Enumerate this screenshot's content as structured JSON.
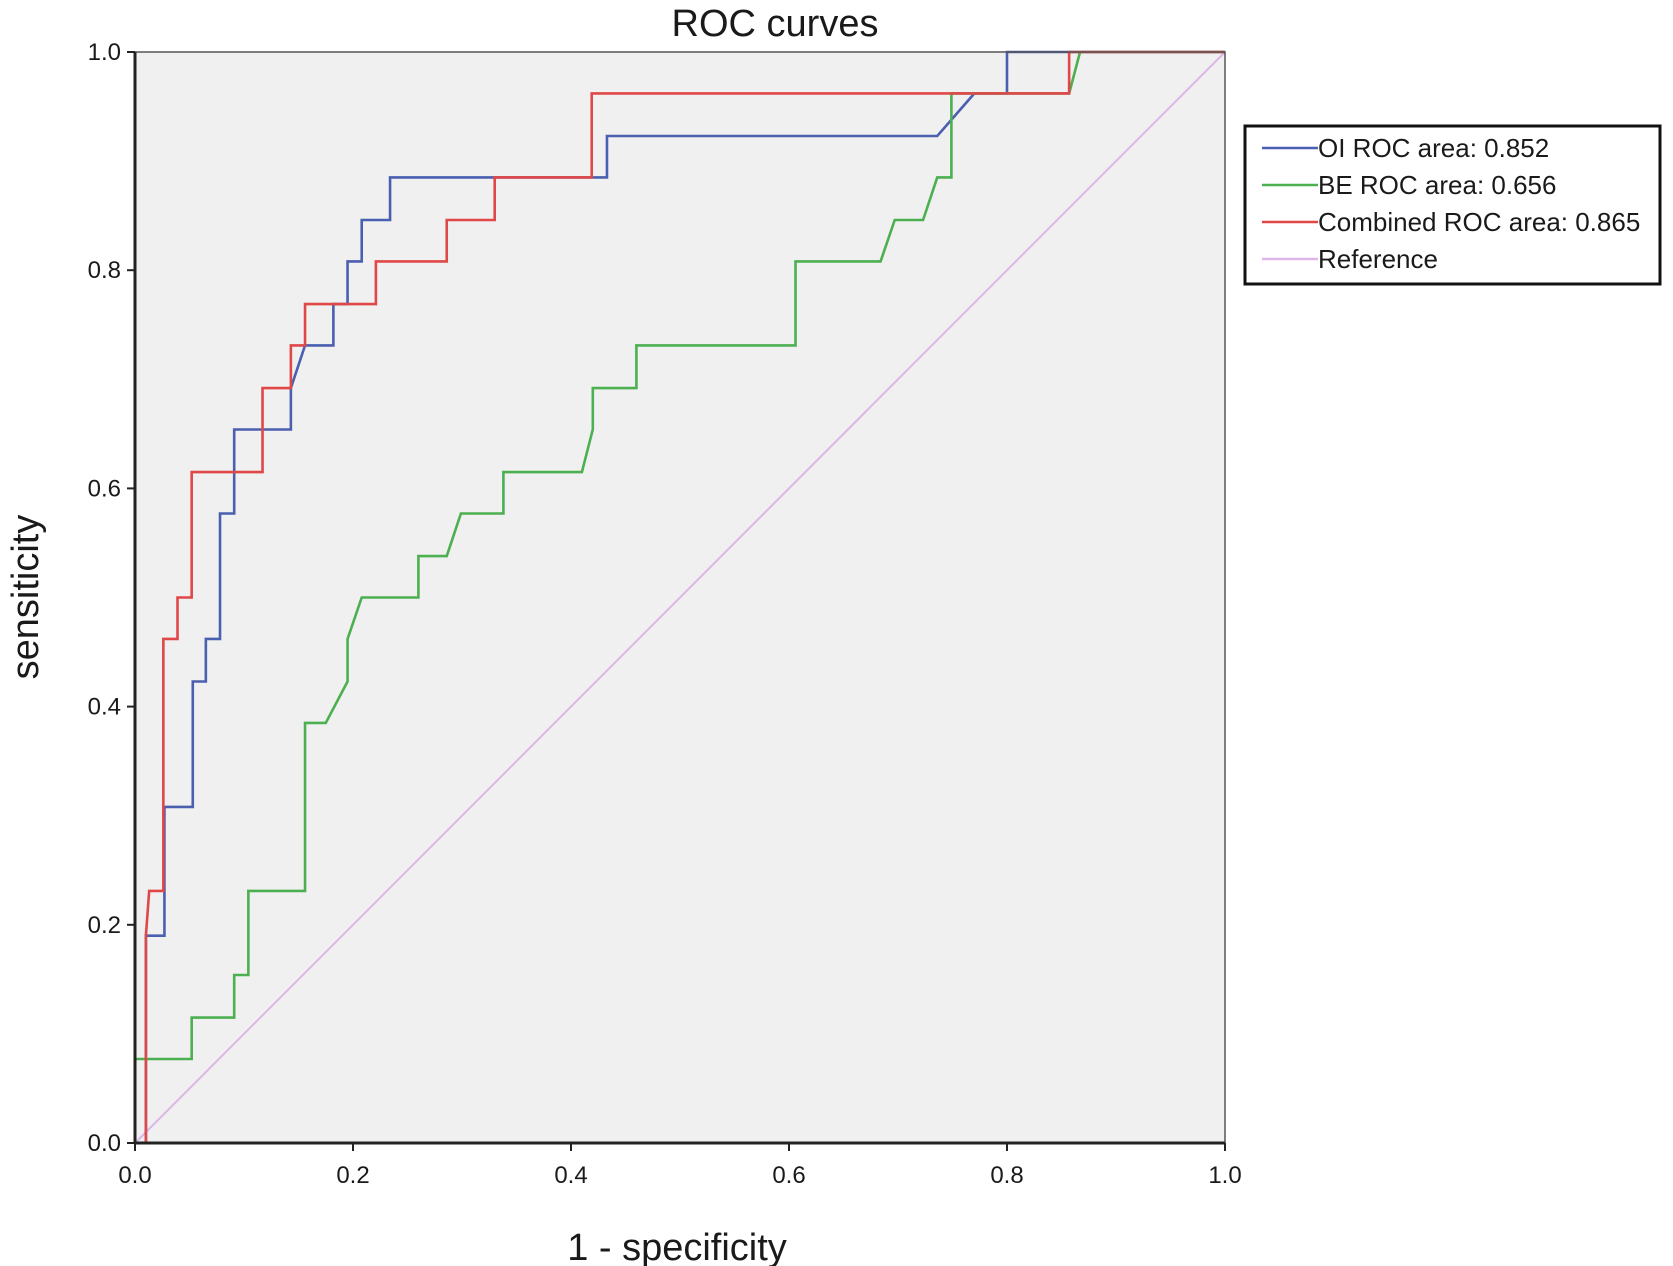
{
  "chart_data": {
    "type": "line",
    "title": "ROC curves",
    "xlabel": "1 - specificity",
    "ylabel": "sensiticity",
    "xlim": [
      0.0,
      1.0
    ],
    "ylim": [
      0.0,
      1.0
    ],
    "x_ticks": [
      "0.0",
      "0.2",
      "0.4",
      "0.6",
      "0.8",
      "1.0"
    ],
    "y_ticks": [
      "0.0",
      "0.2",
      "0.4",
      "0.6",
      "0.8",
      "1.0"
    ],
    "grid": false,
    "legend_position": "right",
    "series": [
      {
        "name": "OI ROC area: 0.852",
        "color": "#4a5fb0",
        "points": [
          [
            0.01,
            0.0
          ],
          [
            0.01,
            0.19
          ],
          [
            0.027,
            0.19
          ],
          [
            0.027,
            0.308
          ],
          [
            0.053,
            0.308
          ],
          [
            0.053,
            0.423
          ],
          [
            0.065,
            0.423
          ],
          [
            0.065,
            0.462
          ],
          [
            0.078,
            0.462
          ],
          [
            0.078,
            0.577
          ],
          [
            0.091,
            0.577
          ],
          [
            0.091,
            0.654
          ],
          [
            0.143,
            0.654
          ],
          [
            0.143,
            0.692
          ],
          [
            0.156,
            0.731
          ],
          [
            0.182,
            0.731
          ],
          [
            0.182,
            0.769
          ],
          [
            0.195,
            0.769
          ],
          [
            0.195,
            0.808
          ],
          [
            0.208,
            0.808
          ],
          [
            0.208,
            0.846
          ],
          [
            0.234,
            0.846
          ],
          [
            0.234,
            0.885
          ],
          [
            0.433,
            0.885
          ],
          [
            0.433,
            0.923
          ],
          [
            0.736,
            0.923
          ],
          [
            0.77,
            0.962
          ],
          [
            0.8,
            0.962
          ],
          [
            0.8,
            1.0
          ],
          [
            1.0,
            1.0
          ]
        ]
      },
      {
        "name": "BE ROC area: 0.656",
        "color": "#4caf50",
        "points": [
          [
            0.0,
            0.0
          ],
          [
            0.0,
            0.077
          ],
          [
            0.052,
            0.077
          ],
          [
            0.052,
            0.115
          ],
          [
            0.091,
            0.115
          ],
          [
            0.091,
            0.154
          ],
          [
            0.104,
            0.154
          ],
          [
            0.104,
            0.231
          ],
          [
            0.156,
            0.231
          ],
          [
            0.156,
            0.385
          ],
          [
            0.175,
            0.385
          ],
          [
            0.195,
            0.423
          ],
          [
            0.195,
            0.462
          ],
          [
            0.208,
            0.5
          ],
          [
            0.26,
            0.5
          ],
          [
            0.26,
            0.538
          ],
          [
            0.286,
            0.538
          ],
          [
            0.299,
            0.577
          ],
          [
            0.338,
            0.577
          ],
          [
            0.338,
            0.615
          ],
          [
            0.41,
            0.615
          ],
          [
            0.42,
            0.654
          ],
          [
            0.42,
            0.692
          ],
          [
            0.46,
            0.692
          ],
          [
            0.46,
            0.731
          ],
          [
            0.606,
            0.731
          ],
          [
            0.606,
            0.808
          ],
          [
            0.684,
            0.808
          ],
          [
            0.697,
            0.846
          ],
          [
            0.723,
            0.846
          ],
          [
            0.736,
            0.885
          ],
          [
            0.749,
            0.885
          ],
          [
            0.749,
            0.962
          ],
          [
            0.857,
            0.962
          ],
          [
            0.867,
            1.0
          ],
          [
            1.0,
            1.0
          ]
        ]
      },
      {
        "name": "Combined ROC area: 0.865",
        "color": "#e04848",
        "points": [
          [
            0.01,
            0.0
          ],
          [
            0.01,
            0.19
          ],
          [
            0.013,
            0.231
          ],
          [
            0.026,
            0.231
          ],
          [
            0.026,
            0.462
          ],
          [
            0.039,
            0.462
          ],
          [
            0.039,
            0.5
          ],
          [
            0.052,
            0.5
          ],
          [
            0.052,
            0.615
          ],
          [
            0.117,
            0.615
          ],
          [
            0.117,
            0.692
          ],
          [
            0.143,
            0.692
          ],
          [
            0.143,
            0.731
          ],
          [
            0.156,
            0.731
          ],
          [
            0.156,
            0.769
          ],
          [
            0.221,
            0.769
          ],
          [
            0.221,
            0.808
          ],
          [
            0.286,
            0.808
          ],
          [
            0.286,
            0.846
          ],
          [
            0.33,
            0.846
          ],
          [
            0.33,
            0.885
          ],
          [
            0.419,
            0.885
          ],
          [
            0.419,
            0.962
          ],
          [
            0.857,
            0.962
          ],
          [
            0.857,
            1.0
          ],
          [
            1.0,
            1.0
          ]
        ]
      },
      {
        "name": "Reference",
        "color": "#dcb7e8",
        "points": [
          [
            0.0,
            0.0
          ],
          [
            1.0,
            1.0
          ]
        ]
      }
    ]
  }
}
